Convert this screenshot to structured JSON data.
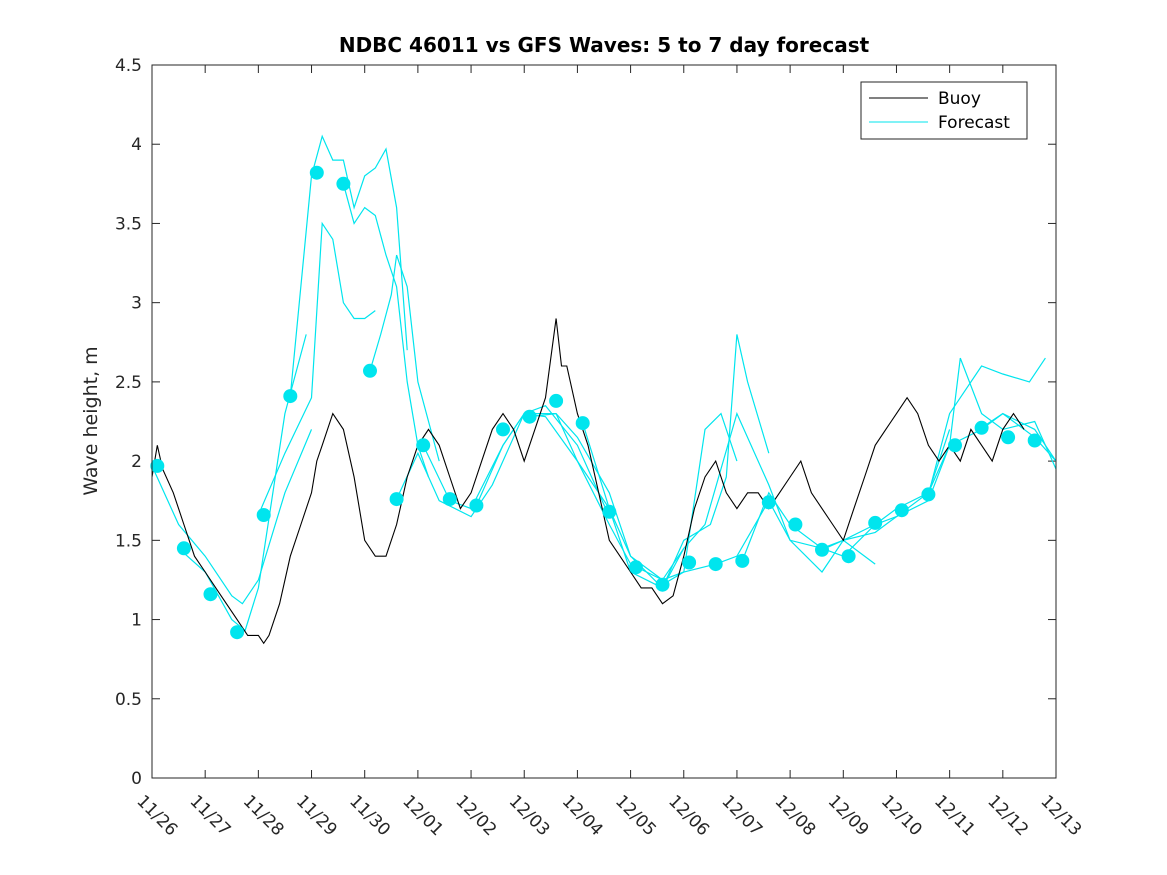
{
  "chart_data": {
    "type": "line",
    "title": "NDBC 46011 vs GFS Waves: 5 to 7 day forecast",
    "xlabel": "",
    "ylabel": "Wave height, m",
    "xlim": [
      0,
      17
    ],
    "ylim": [
      0,
      4.5
    ],
    "x_tick_values": [
      0,
      1,
      2,
      3,
      4,
      5,
      6,
      7,
      8,
      9,
      10,
      11,
      12,
      13,
      14,
      15,
      16,
      17
    ],
    "x_tick_labels": [
      "11/26",
      "11/27",
      "11/28",
      "11/29",
      "11/30",
      "12/01",
      "12/02",
      "12/03",
      "12/04",
      "12/05",
      "12/06",
      "12/07",
      "12/08",
      "12/09",
      "12/10",
      "12/11",
      "12/12",
      "12/13"
    ],
    "y_tick_values": [
      0,
      0.5,
      1,
      1.5,
      2,
      2.5,
      3,
      3.5,
      4,
      4.5
    ],
    "y_tick_labels": [
      "0",
      "0.5",
      "1",
      "1.5",
      "2",
      "2.5",
      "3",
      "3.5",
      "4",
      "4.5"
    ],
    "legend": {
      "position": "top-right",
      "entries": [
        {
          "label": "Buoy",
          "color": "#000000"
        },
        {
          "label": "Forecast",
          "color": "#00e5ee"
        }
      ]
    },
    "colors": {
      "buoy": "#000000",
      "forecast": "#00e5ee"
    },
    "buoy_series": {
      "name": "Buoy",
      "x": [
        0,
        0.1,
        0.2,
        0.4,
        0.6,
        0.8,
        1.0,
        1.2,
        1.4,
        1.6,
        1.8,
        2.0,
        2.1,
        2.2,
        2.4,
        2.6,
        2.8,
        3.0,
        3.1,
        3.2,
        3.4,
        3.6,
        3.8,
        4.0,
        4.2,
        4.4,
        4.6,
        4.8,
        5.0,
        5.2,
        5.4,
        5.6,
        5.8,
        6.0,
        6.2,
        6.4,
        6.6,
        6.8,
        7.0,
        7.2,
        7.4,
        7.6,
        7.7,
        7.8,
        8.0,
        8.2,
        8.4,
        8.6,
        8.8,
        9.0,
        9.2,
        9.4,
        9.6,
        9.8,
        10.0,
        10.2,
        10.4,
        10.6,
        10.8,
        11.0,
        11.2,
        11.4,
        11.6,
        11.8,
        12.0,
        12.2,
        12.4,
        12.6,
        12.8,
        13.0,
        13.2,
        13.4,
        13.6,
        13.8,
        14.0,
        14.2,
        14.4,
        14.6,
        14.8,
        15.0,
        15.2,
        15.4,
        15.6,
        15.8,
        16.0,
        16.2,
        16.4
      ],
      "y": [
        1.9,
        2.1,
        1.95,
        1.8,
        1.6,
        1.4,
        1.3,
        1.2,
        1.1,
        1.0,
        0.9,
        0.9,
        0.85,
        0.9,
        1.1,
        1.4,
        1.6,
        1.8,
        2.0,
        2.1,
        2.3,
        2.2,
        1.9,
        1.5,
        1.4,
        1.4,
        1.6,
        1.9,
        2.1,
        2.2,
        2.1,
        1.9,
        1.7,
        1.8,
        2.0,
        2.2,
        2.3,
        2.2,
        2.0,
        2.2,
        2.4,
        2.9,
        2.6,
        2.6,
        2.3,
        2.1,
        1.8,
        1.5,
        1.4,
        1.3,
        1.2,
        1.2,
        1.1,
        1.15,
        1.4,
        1.7,
        1.9,
        2.0,
        1.8,
        1.7,
        1.8,
        1.8,
        1.7,
        1.8,
        1.9,
        2.0,
        1.8,
        1.7,
        1.6,
        1.5,
        1.7,
        1.9,
        2.1,
        2.2,
        2.3,
        2.4,
        2.3,
        2.1,
        2.0,
        2.1,
        2.0,
        2.2,
        2.1,
        2.0,
        2.2,
        2.3,
        2.2
      ]
    },
    "forecast_series": [
      {
        "name": "Forecast",
        "x": [
          0,
          0.5,
          1.0,
          1.5,
          1.7,
          2.0,
          2.5,
          3.0
        ],
        "y": [
          1.97,
          1.6,
          1.4,
          1.15,
          1.1,
          1.25,
          1.8,
          2.2
        ]
      },
      {
        "name": "Forecast",
        "x": [
          0.5,
          1.0,
          1.5,
          1.75,
          2.0,
          2.5,
          2.9
        ],
        "y": [
          1.45,
          1.3,
          1.0,
          0.93,
          1.2,
          2.3,
          2.8
        ]
      },
      {
        "name": "Forecast",
        "x": [
          2.0,
          2.5,
          3.0,
          3.2,
          3.4,
          3.6,
          3.8,
          4.0,
          4.2
        ],
        "y": [
          1.66,
          2.05,
          2.4,
          3.5,
          3.4,
          3.0,
          2.9,
          2.9,
          2.95
        ]
      },
      {
        "name": "Forecast",
        "x": [
          2.6,
          3.0,
          3.2,
          3.4,
          3.6,
          3.8,
          4.0,
          4.2,
          4.4,
          4.6,
          4.8
        ],
        "y": [
          2.41,
          3.8,
          4.05,
          3.9,
          3.9,
          3.6,
          3.8,
          3.85,
          3.97,
          3.6,
          2.7
        ]
      },
      {
        "name": "Forecast",
        "x": [
          3.6,
          3.8,
          4.0,
          4.2,
          4.4,
          4.6,
          4.8,
          5.0,
          5.2
        ],
        "y": [
          3.75,
          3.5,
          3.6,
          3.55,
          3.3,
          3.1,
          2.5,
          2.1,
          1.9
        ]
      },
      {
        "name": "Forecast",
        "x": [
          4.1,
          4.3,
          4.5,
          4.6,
          4.8,
          5.0,
          5.4
        ],
        "y": [
          2.57,
          2.8,
          3.05,
          3.3,
          3.1,
          2.5,
          2.0
        ]
      },
      {
        "name": "Forecast",
        "x": [
          4.6,
          5.0,
          5.4,
          6.0,
          6.4,
          7.0,
          7.4,
          8.0,
          8.6
        ],
        "y": [
          1.76,
          2.05,
          1.75,
          1.65,
          1.85,
          2.3,
          2.35,
          2.1,
          1.65
        ]
      },
      {
        "name": "Forecast",
        "x": [
          5.1,
          5.6,
          6.0,
          6.6,
          7.0,
          7.4,
          8.0,
          8.6,
          9.0,
          9.6,
          10.0
        ],
        "y": [
          2.1,
          1.75,
          1.7,
          2.1,
          2.3,
          2.28,
          2.0,
          1.6,
          1.35,
          1.25,
          1.45
        ]
      },
      {
        "name": "Forecast",
        "x": [
          6.1,
          6.6,
          7.0,
          7.6,
          8.0,
          8.6,
          9.0,
          9.6,
          10.0,
          10.4,
          10.7,
          11.0
        ],
        "y": [
          1.72,
          2.1,
          2.3,
          2.3,
          2.0,
          1.7,
          1.4,
          1.25,
          1.3,
          2.2,
          2.3,
          2.0
        ]
      },
      {
        "name": "Forecast",
        "x": [
          7.1,
          7.6,
          8.0,
          8.6,
          9.0,
          9.6,
          10.0,
          10.5,
          10.8,
          11.0,
          11.2,
          11.6
        ],
        "y": [
          2.28,
          2.3,
          2.15,
          1.8,
          1.4,
          1.2,
          1.5,
          1.6,
          1.9,
          2.8,
          2.5,
          2.05
        ]
      },
      {
        "name": "Forecast",
        "x": [
          8.1,
          8.6,
          9.0,
          9.6,
          10.0,
          10.4,
          11.0,
          11.6,
          12.0,
          12.6,
          13.0,
          13.6
        ],
        "y": [
          2.24,
          1.7,
          1.3,
          1.2,
          1.45,
          1.6,
          2.3,
          1.85,
          1.5,
          1.45,
          1.5,
          1.35
        ]
      },
      {
        "name": "Forecast",
        "x": [
          9.6,
          10.0,
          10.6,
          11.0,
          11.6,
          12.0,
          12.6,
          13.0,
          13.6,
          14.0,
          14.6,
          15.0
        ],
        "y": [
          1.22,
          1.3,
          1.35,
          1.4,
          1.75,
          1.5,
          1.3,
          1.5,
          1.55,
          1.65,
          1.8,
          2.2
        ]
      },
      {
        "name": "Forecast",
        "x": [
          11.1,
          11.6,
          12.0,
          12.6,
          13.0,
          13.6,
          14.0,
          14.6,
          15.0,
          15.6,
          16.0,
          16.6,
          17.0
        ],
        "y": [
          1.37,
          1.8,
          1.6,
          1.45,
          1.4,
          1.6,
          1.7,
          1.8,
          2.1,
          2.2,
          2.3,
          2.15,
          2.0
        ]
      },
      {
        "name": "Forecast",
        "x": [
          12.6,
          13.0,
          13.6,
          14.0,
          14.6,
          15.0,
          15.2,
          15.6,
          16.0,
          16.6,
          17.0
        ],
        "y": [
          1.44,
          1.5,
          1.6,
          1.65,
          1.75,
          2.1,
          2.65,
          2.3,
          2.2,
          2.25,
          1.95
        ]
      },
      {
        "name": "Forecast",
        "x": [
          14.6,
          15.0,
          15.6,
          16.0,
          16.5,
          16.8
        ],
        "y": [
          1.79,
          2.3,
          2.6,
          2.55,
          2.5,
          2.65
        ]
      },
      {
        "name": "Forecast",
        "x": [
          15.6,
          16.0,
          16.6,
          17.0
        ],
        "y": [
          2.21,
          2.3,
          2.2,
          2.0
        ]
      }
    ],
    "forecast_markers": {
      "name": "Forecast",
      "x": [
        0.1,
        0.6,
        1.1,
        1.6,
        2.1,
        2.6,
        3.1,
        3.6,
        4.1,
        4.6,
        5.1,
        5.6,
        6.1,
        6.6,
        7.1,
        7.6,
        8.1,
        8.6,
        9.1,
        9.6,
        10.1,
        10.6,
        11.1,
        11.6,
        12.1,
        12.6,
        13.1,
        13.6,
        14.1,
        14.6,
        15.1,
        15.6,
        16.1,
        16.6
      ],
      "y": [
        1.97,
        1.45,
        1.16,
        0.92,
        1.66,
        2.41,
        3.82,
        3.75,
        2.57,
        1.76,
        2.1,
        1.76,
        1.72,
        2.2,
        2.28,
        2.38,
        2.24,
        1.68,
        1.33,
        1.22,
        1.36,
        1.35,
        1.37,
        1.74,
        1.6,
        1.44,
        1.4,
        1.61,
        1.69,
        1.79,
        2.1,
        2.21,
        2.15,
        2.13
      ]
    }
  }
}
